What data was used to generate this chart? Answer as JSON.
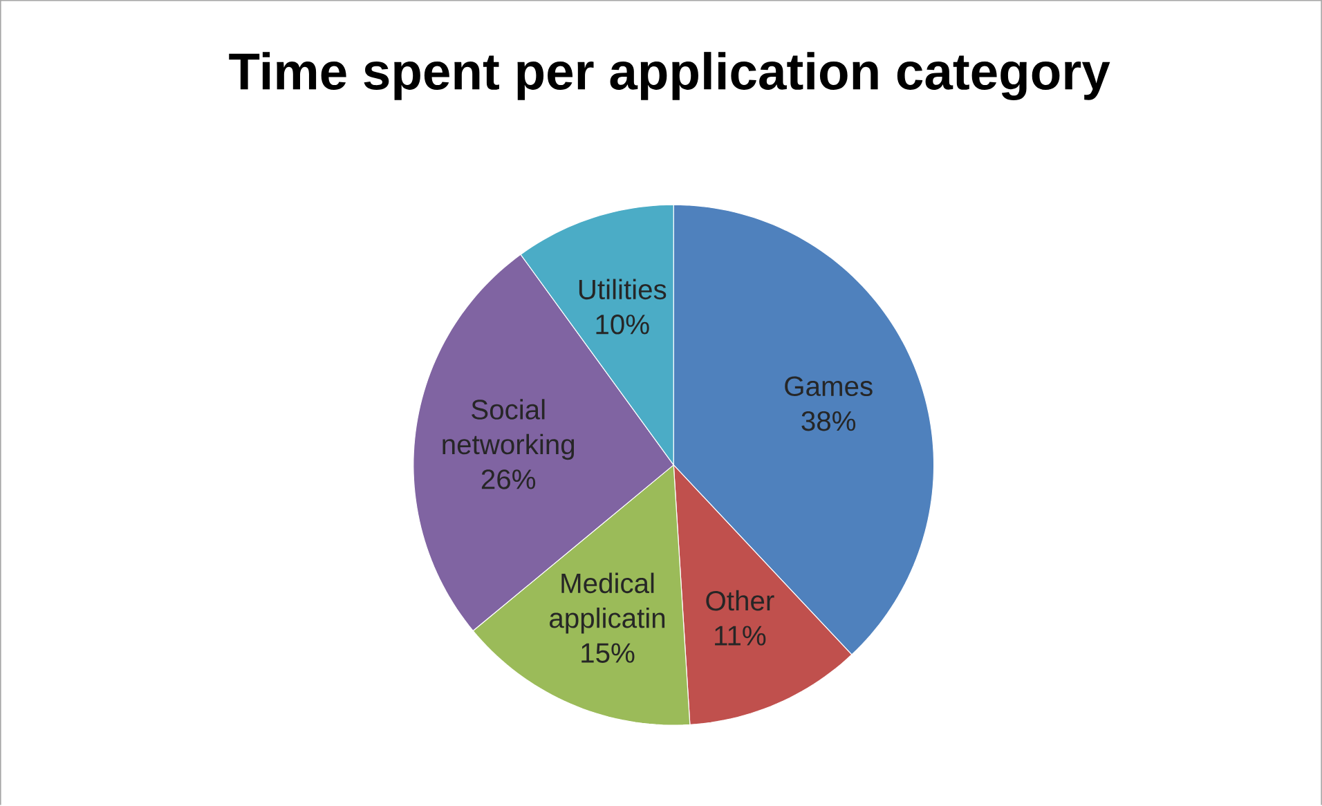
{
  "chart_data": {
    "type": "pie",
    "title": "Time spent per application category",
    "categories": [
      "Games",
      "Other",
      "Medical applicatin",
      "Social networking",
      "Utilities"
    ],
    "values": [
      38,
      11,
      15,
      26,
      10
    ],
    "value_labels": [
      "38%",
      "11%",
      "15%",
      "26%",
      "10%"
    ],
    "colors": [
      "#4f81bd",
      "#c0504d",
      "#9bbb59",
      "#8064a2",
      "#4bacc6"
    ]
  }
}
